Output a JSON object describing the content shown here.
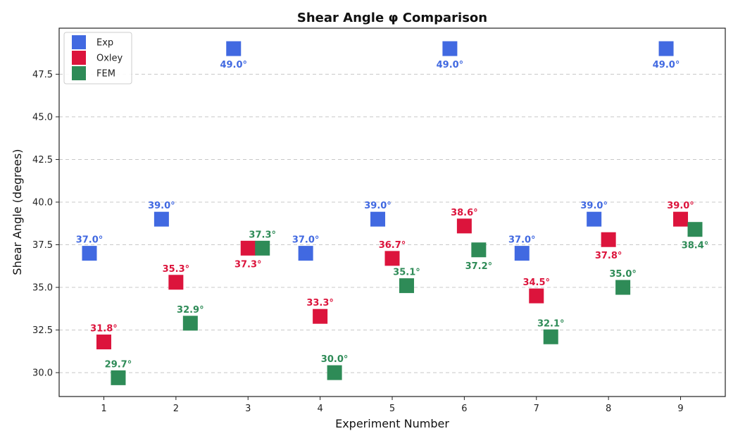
{
  "chart_data": {
    "type": "scatter",
    "title": "Shear Angle φ Comparison",
    "xlabel": "Experiment Number",
    "ylabel": "Shear Angle (degrees)",
    "x": [
      1,
      2,
      3,
      4,
      5,
      6,
      7,
      8,
      9
    ],
    "xlim": [
      0.38,
      9.62
    ],
    "ylim": [
      28.6,
      50.2
    ],
    "yticks": [
      "30.0",
      "32.5",
      "35.0",
      "37.5",
      "40.0",
      "42.5",
      "45.0",
      "47.5"
    ],
    "xticks": [
      "1",
      "2",
      "3",
      "4",
      "5",
      "6",
      "7",
      "8",
      "9"
    ],
    "grid": "y-dashed",
    "legend_position": "top-left",
    "label_suffix": "°",
    "series": [
      {
        "name": "Exp",
        "color": "#4169E1",
        "x_offset": -0.2,
        "values": [
          37.0,
          39.0,
          49.0,
          37.0,
          39.0,
          49.0,
          37.0,
          39.0,
          49.0
        ],
        "labels": [
          "37.0°",
          "39.0°",
          "49.0°",
          "37.0°",
          "39.0°",
          "49.0°",
          "37.0°",
          "39.0°",
          "49.0°"
        ],
        "label_side": [
          "above",
          "above",
          "below",
          "above",
          "above",
          "below",
          "above",
          "above",
          "below"
        ]
      },
      {
        "name": "Oxley",
        "color": "#DC143C",
        "x_offset": 0.0,
        "values": [
          31.8,
          35.3,
          37.3,
          33.3,
          36.7,
          38.6,
          34.5,
          37.8,
          39.0
        ],
        "labels": [
          "31.8°",
          "35.3°",
          "37.3°",
          "33.3°",
          "36.7°",
          "38.6°",
          "34.5°",
          "37.8°",
          "39.0°"
        ],
        "label_side": [
          "above",
          "above",
          "below",
          "above",
          "above",
          "above",
          "above",
          "below",
          "above"
        ]
      },
      {
        "name": "FEM",
        "color": "#2E8B57",
        "x_offset": 0.2,
        "values": [
          29.7,
          32.9,
          37.3,
          30.0,
          35.1,
          37.2,
          32.1,
          35.0,
          38.4
        ],
        "labels": [
          "29.7°",
          "32.9°",
          "37.3°",
          "30.0°",
          "35.1°",
          "37.2°",
          "32.1°",
          "35.0°",
          "38.4°"
        ],
        "label_side": [
          "above",
          "above",
          "above",
          "above",
          "above",
          "below",
          "above",
          "above",
          "below"
        ]
      }
    ]
  }
}
